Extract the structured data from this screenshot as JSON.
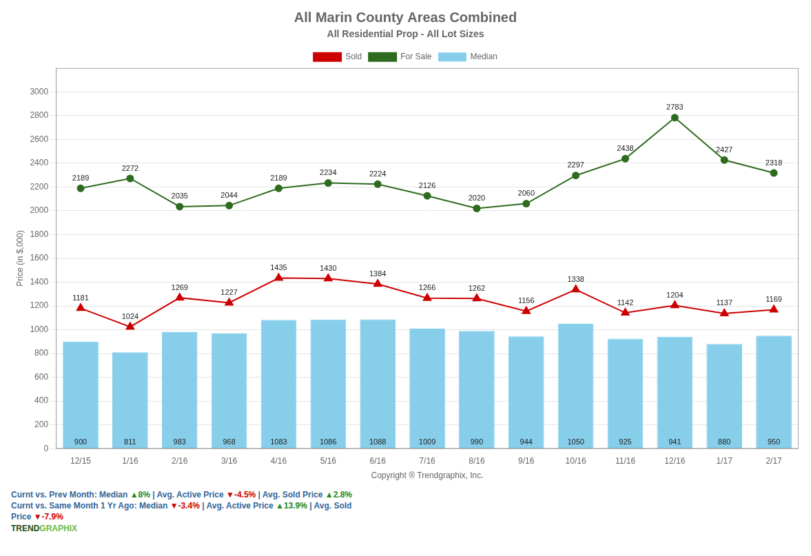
{
  "chart_data": {
    "type": "bar",
    "title": "All Marin County Areas Combined",
    "subtitle": "All Residential Prop - All Lot Sizes",
    "xlabel": "Copyright ® Trendgraphix, Inc.",
    "ylabel": "Price (in $,000)",
    "categories": [
      "12/15",
      "1/16",
      "2/16",
      "3/16",
      "4/16",
      "5/16",
      "6/16",
      "7/16",
      "8/16",
      "9/16",
      "10/16",
      "11/16",
      "12/16",
      "1/17",
      "2/17"
    ],
    "series": [
      {
        "name": "Median",
        "type": "bar",
        "color": "#87CEEB",
        "values": [
          900,
          811,
          983,
          968,
          1083,
          1086,
          1088,
          1009,
          990,
          944,
          1050,
          925,
          941,
          880,
          950
        ]
      },
      {
        "name": "Sold",
        "type": "line",
        "color": "#CC0000",
        "marker": "triangle",
        "values": [
          1181,
          1024,
          1269,
          1227,
          1435,
          1430,
          1384,
          1266,
          1262,
          1156,
          1338,
          1142,
          1204,
          1137,
          1169
        ]
      },
      {
        "name": "For Sale",
        "type": "line",
        "color": "#2E6B1E",
        "marker": "circle",
        "values": [
          2189,
          2272,
          2035,
          2044,
          2189,
          2234,
          2224,
          2126,
          2020,
          2060,
          2297,
          2438,
          2783,
          2427,
          2318
        ]
      }
    ],
    "ylim": [
      0,
      3200
    ],
    "yticks": [
      0,
      200,
      400,
      600,
      800,
      1000,
      1200,
      1400,
      1600,
      1800,
      2000,
      2200,
      2400,
      2600,
      2800,
      3000
    ],
    "grid": "y",
    "legend": "top",
    "data_labels": true,
    "annotations": [
      [
        {
          "text": "Curnt vs. Prev Month: ",
          "color": "#336699"
        },
        {
          "text": "Median ",
          "color": "#336699"
        },
        {
          "text": "▲",
          "color": "#228822"
        },
        {
          "text": "8%",
          "color": "#228822"
        },
        {
          "text": " | ",
          "color": "#336699"
        },
        {
          "text": "Avg. Active Price ",
          "color": "#336699"
        },
        {
          "text": "▼",
          "color": "#CC0000"
        },
        {
          "text": "-4.5%",
          "color": "#CC0000"
        },
        {
          "text": " | ",
          "color": "#336699"
        },
        {
          "text": "Avg. Sold Price ",
          "color": "#336699"
        },
        {
          "text": "▲",
          "color": "#228822"
        },
        {
          "text": "2.8%",
          "color": "#228822"
        }
      ],
      [
        {
          "text": "Curnt vs. Same Month 1 Yr Ago: ",
          "color": "#336699"
        },
        {
          "text": "Median ",
          "color": "#336699"
        },
        {
          "text": "▼",
          "color": "#CC0000"
        },
        {
          "text": "-3.4%",
          "color": "#CC0000"
        },
        {
          "text": " | ",
          "color": "#336699"
        },
        {
          "text": "Avg. Active Price ",
          "color": "#336699"
        },
        {
          "text": "▲",
          "color": "#228822"
        },
        {
          "text": "13.9%",
          "color": "#228822"
        },
        {
          "text": " | ",
          "color": "#336699"
        },
        {
          "text": "Avg. Sold",
          "color": "#336699"
        }
      ],
      [
        {
          "text": "Price ",
          "color": "#336699"
        },
        {
          "text": "▼",
          "color": "#CC0000"
        },
        {
          "text": "-7.9%",
          "color": "#CC0000"
        }
      ],
      [
        {
          "text": "TREND",
          "color": "#1B4D1B"
        },
        {
          "text": "GRAPHIX",
          "color": "#66BB44"
        }
      ]
    ]
  }
}
